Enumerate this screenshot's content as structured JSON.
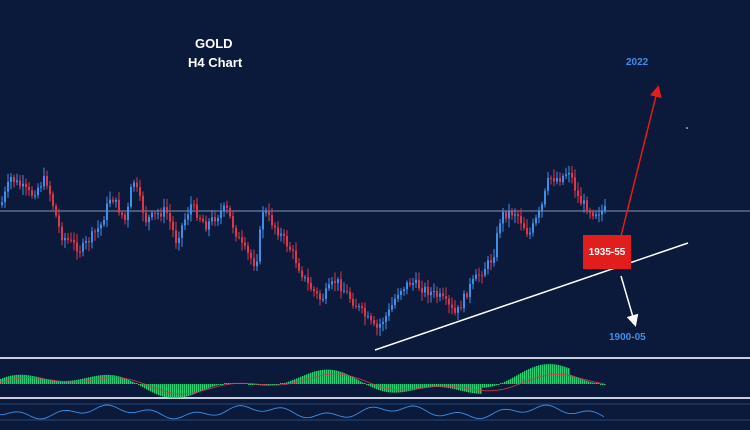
{
  "chart_data": {
    "type": "candlestick",
    "title": "GOLD",
    "subtitle": "H4 Chart",
    "annotations": {
      "bullish_target": "2022",
      "key_zone": "1935-55",
      "bearish_target": "1900-05"
    },
    "colors": {
      "background": "#0b1a3a",
      "up_candle": "#3d8fe8",
      "down_candle": "#e0364a",
      "up_arrow": "#e11d1d",
      "down_arrow": "#ffffff",
      "trendline": "#ffffff",
      "macd_histogram": "#2ecc71",
      "rsi_line": "#3d8fe8"
    },
    "grid": false,
    "indicators": [
      "histogram",
      "oscillator"
    ]
  }
}
